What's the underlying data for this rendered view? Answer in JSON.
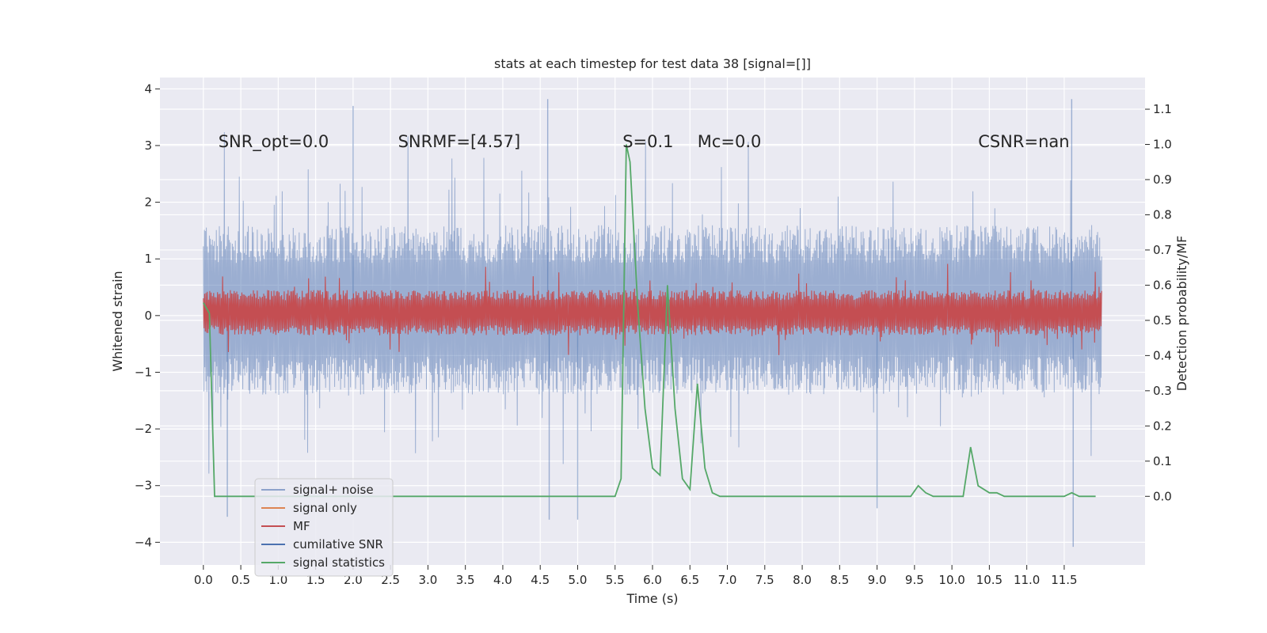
{
  "chart_data": {
    "type": "line",
    "title": "stats at each timestep for test data 38 [signal=[]]",
    "xlabel": "Time (s)",
    "ylabel_left": "Whitened strain",
    "ylabel_right": "Detection probability/MF",
    "xlim": [
      -0.58,
      12.58
    ],
    "ylim_left": [
      -4.4,
      4.2
    ],
    "ylim_right": [
      -0.195,
      1.19
    ],
    "x_ticks": [
      "0.0",
      "0.5",
      "1.0",
      "1.5",
      "2.0",
      "2.5",
      "3.0",
      "3.5",
      "4.0",
      "4.5",
      "5.0",
      "5.5",
      "6.0",
      "6.5",
      "7.0",
      "7.5",
      "8.0",
      "8.5",
      "9.0",
      "9.5",
      "10.0",
      "10.5",
      "11.0",
      "11.5"
    ],
    "y_ticks_left": [
      "4",
      "3",
      "2",
      "1",
      "0",
      "−1",
      "−2",
      "−3",
      "−4"
    ],
    "y_ticks_right": [
      "1.1",
      "1.0",
      "0.9",
      "0.8",
      "0.7",
      "0.6",
      "0.5",
      "0.4",
      "0.3",
      "0.2",
      "0.1",
      "0.0"
    ],
    "grid": true,
    "background": "#eaeaf2",
    "legend_position": "lower-left",
    "annotations": [
      {
        "text": "SNR_opt=0.0",
        "x": 0.2,
        "y": 3.0
      },
      {
        "text": "SNRMF=[4.57]",
        "x": 2.6,
        "y": 3.0
      },
      {
        "text": "S=0.1",
        "x": 5.6,
        "y": 3.0
      },
      {
        "text": "Mc=0.0",
        "x": 6.6,
        "y": 3.0
      },
      {
        "text": "CSNR=nan",
        "x": 10.35,
        "y": 3.0
      }
    ],
    "series": [
      {
        "name": "signal+ noise",
        "color": "#4c72b0",
        "axis": "left",
        "kind": "noise",
        "t_range": [
          0,
          12
        ],
        "typical_range": [
          -1.4,
          1.6
        ],
        "peaks_max": 3.82,
        "peaks_min": -4.08
      },
      {
        "name": "signal only",
        "color": "#dd8452",
        "axis": "left",
        "kind": "empty"
      },
      {
        "name": "MF",
        "color": "#c44e52",
        "axis": "left",
        "kind": "noise",
        "t_range": [
          0,
          12
        ],
        "typical_range": [
          -0.35,
          0.45
        ],
        "peaks_max": 1.0
      },
      {
        "name": "cumilative SNR",
        "color": "#4c72b0",
        "axis": "left",
        "kind": "empty"
      },
      {
        "name": "signal statistics",
        "color": "#55a868",
        "axis": "right",
        "x": [
          0.0,
          0.08,
          0.15,
          0.3,
          1.0,
          2.0,
          3.0,
          4.0,
          4.5,
          5.0,
          5.5,
          5.58,
          5.65,
          5.7,
          5.8,
          5.9,
          6.0,
          6.1,
          6.2,
          6.3,
          6.4,
          6.5,
          6.6,
          6.7,
          6.8,
          6.9,
          7.0,
          7.2,
          8.0,
          9.0,
          9.45,
          9.55,
          9.65,
          9.75,
          9.85,
          10.0,
          10.15,
          10.25,
          10.35,
          10.5,
          10.6,
          10.7,
          11.0,
          11.5,
          11.6,
          11.7,
          11.8,
          11.92
        ],
        "y": [
          0.55,
          0.52,
          0.0,
          0.0,
          0.0,
          0.0,
          0.0,
          0.0,
          0.0,
          0.0,
          0.0,
          0.05,
          1.0,
          0.95,
          0.55,
          0.25,
          0.08,
          0.06,
          0.6,
          0.25,
          0.05,
          0.02,
          0.32,
          0.08,
          0.01,
          0.0,
          0.0,
          0.0,
          0.0,
          0.0,
          0.0,
          0.03,
          0.01,
          0.0,
          0.0,
          0.0,
          0.0,
          0.14,
          0.03,
          0.01,
          0.01,
          0.0,
          0.0,
          0.0,
          0.01,
          0.0,
          0.0,
          0.0
        ]
      }
    ]
  }
}
